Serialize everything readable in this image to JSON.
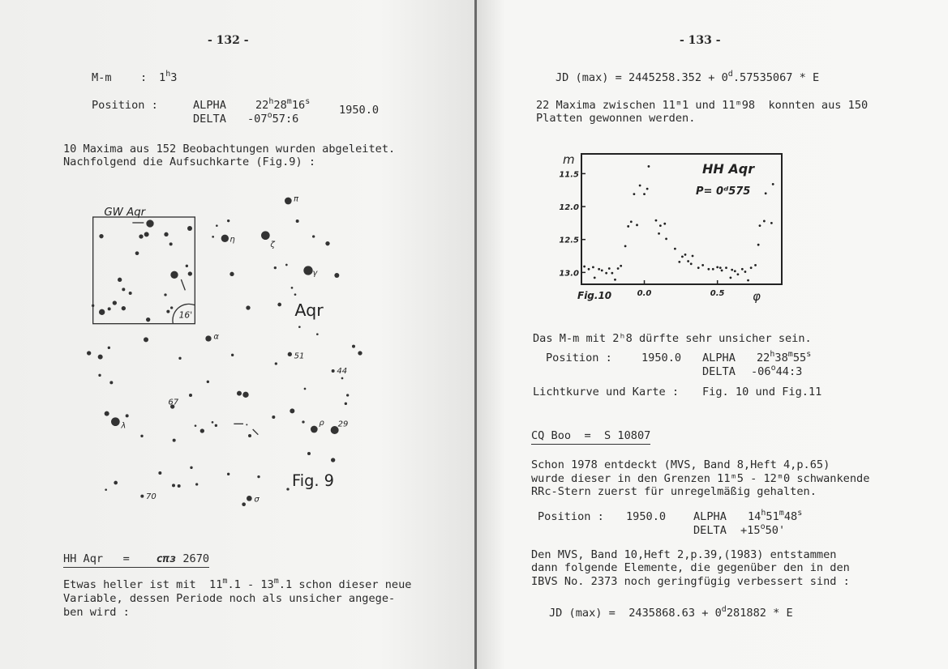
{
  "left_page": {
    "page_number": "- 132 -",
    "mm_label": "M-m",
    "colon": ":",
    "mm_value": {
      "a": "1",
      "sup": "h",
      "b": "3"
    },
    "position_label": "Position :",
    "alpha_label": "ALPHA",
    "alpha": {
      "h": "22",
      "hu": "h",
      "m": "28",
      "mu": "m",
      "s": "16",
      "su": "s"
    },
    "delta_label": "DELTA",
    "delta": {
      "d": "-07",
      "du": "o",
      "rest": "57:6"
    },
    "epoch": "1950.0",
    "para1": [
      "10 Maxima aus 152 Beobachtungen wurden abgeleitet.",
      "Nachfolgend die Aufsuchkarte (Fig.9) :"
    ],
    "finder_chart": {
      "inset_title": "GW Aqr",
      "inset_scale": "16'",
      "constellation": "Aqr",
      "figure_label": "Fig. 9",
      "star_labels": [
        "π",
        "η",
        "ζ",
        "γ",
        "α",
        "51",
        "44",
        "67",
        "λ",
        "ρ",
        "29",
        "70",
        "σ"
      ]
    },
    "heading": {
      "star": "HH Aqr",
      "eq": "=",
      "catalog": "cπз",
      "number": "2670"
    },
    "para2": [
      "Etwas heller ist mit  11",
      "m",
      ".1 - 13",
      "m",
      ".1 schon dieser neue",
      "Variable, dessen Periode noch als unsicher angege-",
      "ben wird :"
    ]
  },
  "right_page": {
    "page_number": "- 133 -",
    "jd1": {
      "a": "JD (max) = 2445258.352 + 0",
      "sup": "d",
      "b": ".57535067 * E"
    },
    "para1": [
      "22 Maxima zwischen 11ᵐ1 und 11ᵐ98  konnten aus 150",
      "Platten gewonnen werden."
    ],
    "para2": "Das M-m mit 2ʰ8 dürfte sehr unsicher sein.",
    "pos1": {
      "label": "Position :",
      "epoch": "1950.0",
      "alpha_label": "ALPHA",
      "alpha": {
        "h": "22",
        "hu": "h",
        "m": "38",
        "mu": "m",
        "s": "55",
        "su": "s"
      },
      "delta_label": "DELTA",
      "delta": {
        "d": "-06",
        "du": "o",
        "rest": "44:3"
      }
    },
    "lightcurve_ref": {
      "label": "Lichtkurve und Karte :",
      "value": "Fig. 10 und Fig.11"
    },
    "heading": {
      "text": "CQ Boo  =  S 10807"
    },
    "para3": [
      "Schon 1978 entdeckt (MVS, Band 8,Heft 4,p.65)",
      "wurde dieser in den Grenzen 11ᵐ5 - 12ᵐ0 schwankende",
      "RRc-Stern zuerst für unregelmäßig gehalten."
    ],
    "pos2": {
      "label": "Position :",
      "epoch": "1950.0",
      "alpha_label": "ALPHA",
      "alpha": {
        "h": "14",
        "hu": "h",
        "m": "51",
        "mu": "m",
        "s": "48",
        "su": "s"
      },
      "delta_label": "DELTA",
      "delta": {
        "d": "+15",
        "du": "o",
        "rest": "50'"
      }
    },
    "para4": [
      "Den MVS, Band 10,Heft 2,p.39,(1983) entstammen",
      "dann folgende Elemente, die gegenüber den in den",
      "IBVS No. 2373 noch geringfügig verbessert sind :"
    ],
    "jd2": {
      "a": "JD (max) =  2435868.63 + 0",
      "sup": "d",
      "b": "281882 * E"
    }
  },
  "chart_data": {
    "type": "scatter",
    "title": "HH Aqr",
    "annotation": "P= 0ᵈ575",
    "figure_label": "Fig.10",
    "ylabel": "m",
    "xlabel": "φ",
    "xticks": [
      "0.0",
      "0.5"
    ],
    "xtick_values": [
      0,
      0.5
    ],
    "yticks": [
      "11.5",
      "12.0",
      "12.5",
      "13.0"
    ],
    "ytick_values": [
      11.5,
      12.0,
      12.5,
      13.0
    ],
    "xlim": [
      -0.43,
      0.94
    ],
    "ylim": [
      13.18,
      11.2
    ],
    "y_inverted": true,
    "grid": false,
    "points": [
      [
        -0.41,
        12.91
      ],
      [
        -0.38,
        12.95
      ],
      [
        -0.35,
        12.92
      ],
      [
        -0.34,
        13.08
      ],
      [
        -0.31,
        12.95
      ],
      [
        -0.29,
        12.97
      ],
      [
        -0.26,
        13.01
      ],
      [
        -0.24,
        12.94
      ],
      [
        -0.22,
        13.01
      ],
      [
        -0.2,
        13.11
      ],
      [
        -0.18,
        12.94
      ],
      [
        -0.16,
        12.9
      ],
      [
        -0.13,
        12.6
      ],
      [
        -0.11,
        12.3
      ],
      [
        -0.09,
        12.23
      ],
      [
        -0.07,
        11.81
      ],
      [
        -0.05,
        12.28
      ],
      [
        -0.03,
        11.68
      ],
      [
        0.0,
        11.81
      ],
      [
        0.02,
        11.73
      ],
      [
        0.03,
        11.39
      ],
      [
        0.08,
        12.21
      ],
      [
        0.1,
        12.41
      ],
      [
        0.11,
        12.29
      ],
      [
        0.14,
        12.26
      ],
      [
        0.15,
        12.49
      ],
      [
        0.21,
        12.64
      ],
      [
        0.24,
        12.84
      ],
      [
        0.26,
        12.76
      ],
      [
        0.28,
        12.73
      ],
      [
        0.3,
        12.83
      ],
      [
        0.32,
        12.87
      ],
      [
        0.33,
        12.75
      ],
      [
        0.37,
        12.93
      ],
      [
        0.4,
        12.89
      ],
      [
        0.44,
        12.95
      ],
      [
        0.47,
        12.95
      ],
      [
        0.5,
        12.92
      ],
      [
        0.52,
        12.93
      ],
      [
        0.53,
        12.97
      ],
      [
        0.56,
        12.93
      ],
      [
        0.59,
        13.08
      ],
      [
        0.6,
        12.96
      ],
      [
        0.62,
        12.98
      ],
      [
        0.64,
        13.03
      ],
      [
        0.67,
        12.95
      ],
      [
        0.69,
        12.99
      ],
      [
        0.71,
        13.12
      ],
      [
        0.73,
        12.93
      ],
      [
        0.76,
        12.89
      ],
      [
        0.78,
        12.58
      ],
      [
        0.79,
        12.29
      ],
      [
        0.82,
        12.22
      ],
      [
        0.83,
        11.8
      ],
      [
        0.87,
        12.25
      ],
      [
        0.88,
        11.66
      ]
    ]
  }
}
